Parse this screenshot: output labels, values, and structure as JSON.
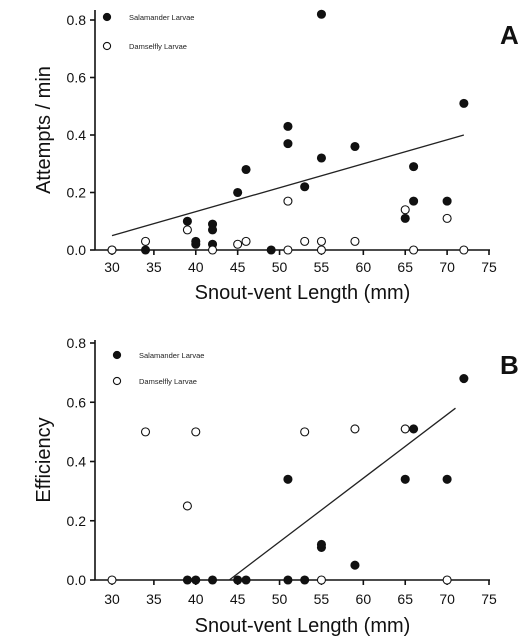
{
  "chart_data": [
    {
      "type": "scatter",
      "panel_label": "A",
      "xlabel": "Snout-vent Length (mm)",
      "ylabel": "Attempts / min",
      "xlim": [
        28,
        75
      ],
      "ylim": [
        0,
        0.85
      ],
      "xticks": [
        30,
        35,
        40,
        45,
        50,
        55,
        60,
        65,
        70,
        75
      ],
      "yticks": [
        0.0,
        0.2,
        0.4,
        0.6,
        0.8
      ],
      "ytick_labels": [
        "0.0",
        "0.2",
        "0.4",
        "0.6",
        "0.8"
      ],
      "legend_position": "top-left",
      "series": [
        {
          "name": "Salamander Larvae",
          "marker": "filled-circle",
          "points": [
            [
              30,
              0.0
            ],
            [
              34,
              0.0
            ],
            [
              39,
              0.1
            ],
            [
              40,
              0.02
            ],
            [
              40,
              0.03
            ],
            [
              42,
              0.09
            ],
            [
              42,
              0.07
            ],
            [
              42,
              0.02
            ],
            [
              45,
              0.2
            ],
            [
              46,
              0.28
            ],
            [
              49,
              0.0
            ],
            [
              51,
              0.43
            ],
            [
              51,
              0.37
            ],
            [
              53,
              0.22
            ],
            [
              55,
              0.82
            ],
            [
              55,
              0.32
            ],
            [
              59,
              0.36
            ],
            [
              65,
              0.11
            ],
            [
              66,
              0.29
            ],
            [
              66,
              0.17
            ],
            [
              70,
              0.17
            ],
            [
              72,
              0.51
            ]
          ]
        },
        {
          "name": "Damselfly Larvae",
          "marker": "open-circle",
          "points": [
            [
              30,
              0.0
            ],
            [
              34,
              0.03
            ],
            [
              39,
              0.07
            ],
            [
              42,
              0.0
            ],
            [
              45,
              0.02
            ],
            [
              46,
              0.03
            ],
            [
              51,
              0.17
            ],
            [
              51,
              0.0
            ],
            [
              53,
              0.03
            ],
            [
              55,
              0.03
            ],
            [
              55,
              0.0
            ],
            [
              59,
              0.03
            ],
            [
              65,
              0.14
            ],
            [
              66,
              0.0
            ],
            [
              70,
              0.11
            ],
            [
              72,
              0.0
            ]
          ]
        }
      ],
      "fit_line": {
        "x": [
          30,
          72
        ],
        "y": [
          0.05,
          0.4
        ]
      }
    },
    {
      "type": "scatter",
      "panel_label": "B",
      "xlabel": "Snout-vent Length (mm)",
      "ylabel": "Efficiency",
      "xlim": [
        28,
        75
      ],
      "ylim": [
        0,
        0.8
      ],
      "xticks": [
        30,
        35,
        40,
        45,
        50,
        55,
        60,
        65,
        70,
        75
      ],
      "yticks": [
        0.0,
        0.2,
        0.4,
        0.6,
        0.8
      ],
      "ytick_labels": [
        "0.0",
        "0.2",
        "0.4",
        "0.6",
        "0.8"
      ],
      "legend_position": "top-left",
      "series": [
        {
          "name": "Salamander Larvae",
          "marker": "filled-circle",
          "points": [
            [
              39,
              0.0
            ],
            [
              40,
              0.0
            ],
            [
              42,
              0.0
            ],
            [
              45,
              0.0
            ],
            [
              46,
              0.0
            ],
            [
              51,
              0.34
            ],
            [
              51,
              0.0
            ],
            [
              53,
              0.0
            ],
            [
              55,
              0.11
            ],
            [
              55,
              0.12
            ],
            [
              59,
              0.05
            ],
            [
              65,
              0.34
            ],
            [
              66,
              0.51
            ],
            [
              70,
              0.34
            ],
            [
              72,
              0.68
            ]
          ]
        },
        {
          "name": "Damselfly Larvae",
          "marker": "open-circle",
          "points": [
            [
              30,
              0.0
            ],
            [
              34,
              0.5
            ],
            [
              39,
              0.25
            ],
            [
              40,
              0.5
            ],
            [
              53,
              0.5
            ],
            [
              55,
              0.0
            ],
            [
              59,
              0.51
            ],
            [
              65,
              0.51
            ],
            [
              70,
              0.0
            ]
          ]
        }
      ],
      "fit_line": {
        "x": [
          44,
          71
        ],
        "y": [
          0.0,
          0.58
        ]
      }
    }
  ]
}
